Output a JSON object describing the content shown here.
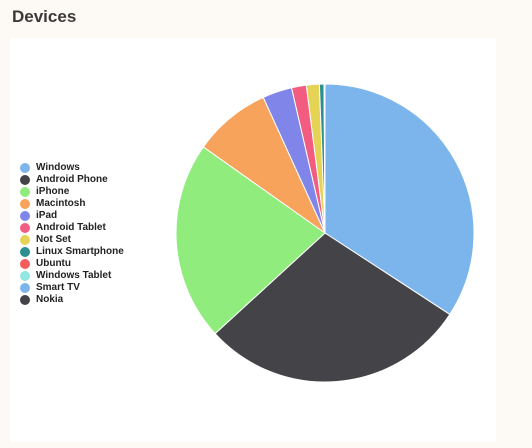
{
  "page": {
    "title": "Devices"
  },
  "chart_data": {
    "type": "pie",
    "categories": [
      "Windows",
      "Android Phone",
      "iPhone",
      "Macintosh",
      "iPad",
      "Android Tablet",
      "Not Set",
      "Linux Smartphone",
      "Ubuntu",
      "Windows Tablet",
      "Smart TV",
      "Nokia"
    ],
    "values": [
      34.2,
      29.0,
      21.6,
      8.4,
      3.2,
      1.6,
      1.4,
      0.5,
      0.05,
      0.03,
      0.01,
      0.01
    ],
    "colors": [
      "#7cb5ec",
      "#434348",
      "#90ed7d",
      "#f7a35c",
      "#8085e9",
      "#f15c80",
      "#e4d354",
      "#2b908f",
      "#f45b5b",
      "#91e8e1",
      "#7cb5ec",
      "#434348"
    ],
    "legend_position": "left"
  }
}
